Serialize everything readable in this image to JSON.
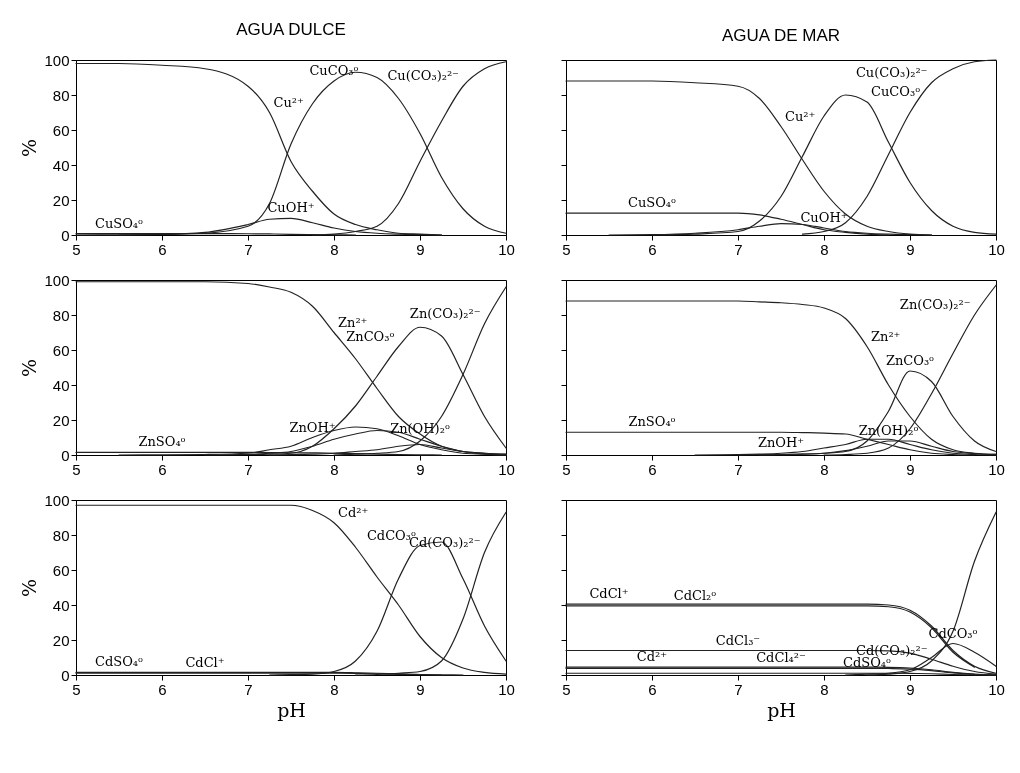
{
  "chart_data": [
    {
      "type": "line",
      "title": "AGUA DULCE",
      "ylabel": "%",
      "xlim": [
        5,
        10
      ],
      "xticks": [
        5,
        6,
        7,
        8,
        9,
        10
      ],
      "ylim": [
        0,
        100
      ],
      "yticks": [
        0,
        20,
        40,
        60,
        80,
        100
      ],
      "grid": false,
      "x": [
        5,
        5.5,
        6,
        6.5,
        7,
        7.25,
        7.5,
        7.75,
        8,
        8.25,
        8.5,
        8.75,
        9,
        9.25,
        9.5,
        9.75,
        10
      ],
      "series": [
        {
          "color": "#222222",
          "values": [
            98,
            98,
            97,
            95,
            85,
            70,
            42,
            25,
            12,
            6,
            3,
            1,
            0.5,
            0,
            null,
            null,
            null
          ]
        },
        {
          "color": "#222222",
          "values": [
            null,
            0,
            0.3,
            1,
            5,
            18,
            52,
            75,
            88,
            93,
            90,
            78,
            58,
            33,
            15,
            5,
            1
          ]
        },
        {
          "color": "#222222",
          "values": [
            null,
            null,
            null,
            null,
            null,
            null,
            null,
            0,
            0.5,
            2,
            5,
            18,
            42,
            65,
            85,
            95,
            99
          ]
        },
        {
          "color": "#222222",
          "values": [
            0,
            0.1,
            0.3,
            1.5,
            6,
            9,
            9.5,
            7,
            4,
            2,
            1,
            0.5,
            0.2,
            0,
            null,
            null,
            null
          ]
        },
        {
          "color": "#222222",
          "values": [
            0.8,
            0.8,
            0.8,
            0.8,
            0.7,
            0.6,
            0.4,
            0.2,
            0.1,
            0,
            null,
            null,
            null,
            null,
            null,
            null,
            null
          ]
        }
      ],
      "annotations": [
        {
          "text": "Cu²⁺",
          "x": 7.25,
          "y": 70
        },
        {
          "text": "CuCO₃ᵒ",
          "x": 8,
          "y": 88
        },
        {
          "text": "Cu(CO₃)₂²⁻",
          "x": 9.5,
          "y": 85
        },
        {
          "text": "CuOH⁺",
          "x": 7.5,
          "y": 9.5
        },
        {
          "text": "CuSO₄ᵒ",
          "x": 5.5,
          "y": 0.8
        }
      ]
    },
    {
      "type": "line",
      "title": "AGUA DE MAR",
      "xlim": [
        5,
        10
      ],
      "xticks": [
        5,
        6,
        7,
        8,
        9,
        10
      ],
      "ylim": [
        0,
        100
      ],
      "yticks": [
        0,
        20,
        40,
        60,
        80,
        100
      ],
      "tick_labels": "x",
      "grid": false,
      "x": [
        5,
        5.5,
        6,
        6.5,
        7,
        7.25,
        7.5,
        7.75,
        8,
        8.25,
        8.5,
        8.75,
        9,
        9.25,
        9.5,
        9.75,
        10
      ],
      "series": [
        {
          "color": "#222222",
          "values": [
            88,
            88,
            88,
            87,
            85,
            78,
            62,
            43,
            25,
            12,
            5,
            2,
            0.5,
            0,
            null,
            null,
            null
          ]
        },
        {
          "color": "#222222",
          "values": [
            null,
            null,
            0,
            0.5,
            2,
            8,
            22,
            45,
            68,
            80,
            76,
            53,
            30,
            14,
            5,
            1.5,
            0.5
          ]
        },
        {
          "color": "#222222",
          "values": [
            null,
            null,
            null,
            null,
            null,
            null,
            null,
            0.5,
            2,
            7,
            22,
            46,
            70,
            87,
            95,
            99,
            100
          ]
        },
        {
          "color": "#222222",
          "values": [
            12.5,
            12.5,
            12.5,
            12.5,
            12.5,
            11.5,
            9,
            6,
            3,
            1.5,
            0.5,
            0,
            null,
            null,
            null,
            null,
            null
          ]
        },
        {
          "color": "#222222",
          "values": [
            null,
            0,
            0.2,
            1,
            3,
            5,
            6.5,
            6,
            4,
            2,
            1,
            0.5,
            0.2,
            0,
            null,
            null,
            null
          ]
        }
      ],
      "annotations": [
        {
          "text": "Cu²⁺",
          "x": 7.5,
          "y": 62
        },
        {
          "text": "CuCO₃ᵒ",
          "x": 8.5,
          "y": 76
        },
        {
          "text": "Cu(CO₃)₂²⁻",
          "x": 9.25,
          "y": 87
        },
        {
          "text": "CuOH⁺",
          "x": 8,
          "y": 4
        },
        {
          "text": "CuSO₄ᵒ",
          "x": 6,
          "y": 12.5
        }
      ]
    },
    {
      "type": "line",
      "ylabel": "%",
      "xlim": [
        5,
        10
      ],
      "xticks": [
        5,
        6,
        7,
        8,
        9,
        10
      ],
      "ylim": [
        0,
        100
      ],
      "yticks": [
        0,
        20,
        40,
        60,
        80,
        100
      ],
      "grid": false,
      "x": [
        5,
        5.5,
        6,
        6.5,
        7,
        7.25,
        7.5,
        7.75,
        8,
        8.25,
        8.5,
        8.75,
        9,
        9.25,
        9.5,
        9.75,
        10
      ],
      "series": [
        {
          "color": "#222222",
          "values": [
            99,
            99,
            99,
            99,
            98,
            96,
            93,
            85,
            70,
            55,
            38,
            22,
            12,
            5,
            2,
            0.5,
            0
          ]
        },
        {
          "color": "#222222",
          "values": [
            null,
            null,
            null,
            0,
            0.3,
            0.5,
            1,
            5,
            15,
            28,
            45,
            62,
            73,
            68,
            46,
            22,
            4
          ]
        },
        {
          "color": "#222222",
          "values": [
            null,
            null,
            null,
            null,
            null,
            null,
            null,
            null,
            0,
            0.5,
            1,
            2,
            8,
            22,
            46,
            75,
            96
          ]
        },
        {
          "color": "#222222",
          "values": [
            null,
            0,
            0.1,
            0.3,
            1,
            3,
            5,
            10,
            14,
            16,
            15,
            11,
            6,
            3,
            1,
            0.5,
            0
          ]
        },
        {
          "color": "#222222",
          "values": [
            null,
            null,
            null,
            null,
            0.2,
            1,
            2,
            5,
            9,
            12,
            14,
            13,
            9,
            5,
            2,
            1,
            0.3
          ]
        },
        {
          "color": "#222222",
          "values": [
            null,
            null,
            null,
            null,
            null,
            0,
            0.2,
            0.5,
            1,
            2,
            3,
            5,
            6,
            4,
            2,
            1,
            0.5
          ]
        },
        {
          "color": "#222222",
          "values": [
            1.5,
            1.5,
            1.5,
            1.5,
            1.5,
            1.4,
            1.3,
            1.2,
            1,
            0.8,
            0.5,
            0.3,
            0.1,
            0,
            null,
            null,
            null
          ]
        }
      ],
      "annotations": [
        {
          "text": "Zn²⁺",
          "x": 8,
          "y": 70
        },
        {
          "text": "ZnCO₃ᵒ",
          "x": 8.75,
          "y": 62
        },
        {
          "text": "Zn(CO₃)₂²⁻",
          "x": 9.75,
          "y": 75
        },
        {
          "text": "Zn(OH)₂ᵒ",
          "x": 9,
          "y": 9
        },
        {
          "text": "ZnOH⁺",
          "x": 7.75,
          "y": 10
        },
        {
          "text": "ZnSO₄ᵒ",
          "x": 6,
          "y": 1.5
        }
      ]
    },
    {
      "type": "line",
      "xlim": [
        5,
        10
      ],
      "xticks": [
        5,
        6,
        7,
        8,
        9,
        10
      ],
      "ylim": [
        0,
        100
      ],
      "yticks": [
        0,
        20,
        40,
        60,
        80,
        100
      ],
      "tick_labels": "x",
      "grid": false,
      "x": [
        5,
        5.5,
        6,
        6.5,
        7,
        7.25,
        7.5,
        7.75,
        8,
        8.25,
        8.5,
        8.75,
        9,
        9.25,
        9.5,
        9.75,
        10
      ],
      "series": [
        {
          "color": "#222222",
          "values": [
            88,
            88,
            88,
            88,
            88,
            87.5,
            87,
            86,
            84,
            78,
            62,
            40,
            22,
            9,
            3,
            1,
            0.3
          ]
        },
        {
          "color": "#222222",
          "values": [
            null,
            null,
            null,
            null,
            null,
            0,
            0.2,
            0.5,
            1,
            2,
            8,
            25,
            48,
            42,
            22,
            8,
            2
          ]
        },
        {
          "color": "#222222",
          "values": [
            null,
            null,
            null,
            null,
            null,
            null,
            null,
            null,
            0,
            0.3,
            1,
            4,
            15,
            35,
            58,
            80,
            97
          ]
        },
        {
          "color": "#222222",
          "values": [
            13,
            13,
            13,
            13,
            13,
            13,
            13,
            12.8,
            12.5,
            12,
            9,
            6,
            3,
            1,
            0.3,
            0,
            null
          ]
        },
        {
          "color": "#222222",
          "values": [
            null,
            null,
            null,
            0,
            0.2,
            0.5,
            1,
            2,
            4,
            6,
            9,
            9,
            6,
            3,
            1,
            0.3,
            0
          ]
        },
        {
          "color": "#222222",
          "values": [
            null,
            null,
            null,
            null,
            0,
            0.2,
            0.3,
            0.5,
            1,
            2.5,
            5,
            8,
            8,
            5,
            2,
            0.8,
            0.3
          ]
        }
      ],
      "annotations": [
        {
          "text": "Zn²⁺",
          "x": 8.5,
          "y": 62
        },
        {
          "text": "ZnCO₃ᵒ",
          "x": 9,
          "y": 48
        },
        {
          "text": "Zn(CO₃)₂²⁻",
          "x": 9.75,
          "y": 80
        },
        {
          "text": "Zn(OH)₂ᵒ",
          "x": 8.75,
          "y": 8
        },
        {
          "text": "ZnOH⁺",
          "x": 7.5,
          "y": 1
        },
        {
          "text": "ZnSO₄ᵒ",
          "x": 6,
          "y": 13
        }
      ]
    },
    {
      "type": "line",
      "xlabel": "pH",
      "ylabel": "%",
      "xlim": [
        5,
        10
      ],
      "xticks": [
        5,
        6,
        7,
        8,
        9,
        10
      ],
      "ylim": [
        0,
        100
      ],
      "yticks": [
        0,
        20,
        40,
        60,
        80,
        100
      ],
      "grid": false,
      "x": [
        5,
        5.5,
        6,
        6.5,
        7,
        7.25,
        7.5,
        7.75,
        8,
        8.25,
        8.5,
        8.75,
        9,
        9.25,
        9.5,
        9.75,
        10
      ],
      "series": [
        {
          "color": "#222222",
          "values": [
            97,
            97,
            97,
            97,
            97,
            97,
            97,
            94,
            87,
            73,
            56,
            40,
            22,
            10,
            4,
            1.5,
            0.5
          ]
        },
        {
          "color": "#222222",
          "values": [
            null,
            null,
            null,
            null,
            null,
            0,
            0.2,
            0.5,
            2,
            8,
            25,
            55,
            74,
            76,
            55,
            28,
            8
          ]
        },
        {
          "color": "#222222",
          "values": [
            null,
            null,
            null,
            null,
            null,
            null,
            null,
            null,
            null,
            0,
            0.3,
            1,
            2,
            8,
            32,
            70,
            93
          ]
        },
        {
          "color": "#222222",
          "values": [
            1.5,
            1.5,
            1.5,
            1.5,
            1.5,
            1.5,
            1.5,
            1.5,
            1.5,
            1.3,
            1,
            0.6,
            0.3,
            0.1,
            0,
            null,
            null
          ]
        },
        {
          "color": "#222222",
          "values": [
            1,
            1,
            1,
            1,
            1,
            1,
            1,
            1,
            1,
            0.9,
            0.7,
            0.4,
            0.2,
            0,
            null,
            null,
            null
          ]
        }
      ],
      "annotations": [
        {
          "text": "Cd²⁺",
          "x": 8,
          "y": 87
        },
        {
          "text": "CdCO₃ᵒ",
          "x": 9,
          "y": 74
        },
        {
          "text": "Cd(CO₃)₂²⁻",
          "x": 9.75,
          "y": 70
        },
        {
          "text": "CdSO₄ᵒ",
          "x": 5.5,
          "y": 1.5
        },
        {
          "text": "CdCl⁺",
          "x": 6.5,
          "y": 1
        }
      ]
    },
    {
      "type": "line",
      "xlabel": "pH",
      "xlim": [
        5,
        10
      ],
      "xticks": [
        5,
        6,
        7,
        8,
        9,
        10
      ],
      "ylim": [
        0,
        100
      ],
      "yticks": [
        0,
        20,
        40,
        60,
        80,
        100
      ],
      "tick_labels": "x",
      "grid": false,
      "x": [
        5,
        5.5,
        6,
        6.5,
        7,
        7.25,
        7.5,
        7.75,
        8,
        8.25,
        8.5,
        8.75,
        9,
        9.25,
        9.5,
        9.75,
        10
      ],
      "series": [
        {
          "color": "#222222",
          "values": [
            40.5,
            40.5,
            40.5,
            40.5,
            40.5,
            40.5,
            40.5,
            40.5,
            40.5,
            40.5,
            40.5,
            40,
            37,
            28,
            14,
            5,
            1
          ]
        },
        {
          "color": "#222222",
          "values": [
            39.5,
            39.5,
            39.5,
            39.5,
            39.5,
            39.5,
            39.5,
            39.5,
            39.5,
            39.5,
            39.5,
            39,
            36,
            27,
            13,
            4.5,
            null
          ]
        },
        {
          "color": "#222222",
          "values": [
            14,
            14,
            14,
            14,
            14,
            14,
            14,
            14,
            14,
            14,
            14,
            13.8,
            12.5,
            9,
            5,
            2,
            0.5
          ]
        },
        {
          "color": "#222222",
          "values": [
            4.5,
            4.5,
            4.5,
            4.5,
            4.5,
            4.5,
            4.5,
            4.5,
            4.5,
            4.5,
            4.5,
            4.4,
            4,
            3,
            1.5,
            0.5,
            0.1
          ]
        },
        {
          "color": "#222222",
          "values": [
            3.8,
            3.8,
            3.8,
            3.8,
            3.8,
            3.8,
            3.8,
            3.8,
            3.8,
            3.8,
            3.8,
            3.7,
            3.4,
            2.5,
            1.2,
            0.4,
            null
          ]
        },
        {
          "color": "#222222",
          "values": [
            1,
            1,
            1,
            1,
            1,
            1,
            1,
            1,
            1,
            1,
            1,
            1,
            0.9,
            0.7,
            0.3,
            0.1,
            0
          ]
        },
        {
          "color": "#222222",
          "values": [
            null,
            null,
            null,
            null,
            null,
            null,
            null,
            null,
            null,
            0,
            0.5,
            1,
            3,
            10,
            18,
            13,
            5
          ]
        },
        {
          "color": "#222222",
          "values": [
            null,
            null,
            null,
            null,
            null,
            null,
            null,
            null,
            null,
            null,
            0,
            0.5,
            2,
            8,
            25,
            65,
            93
          ]
        }
      ],
      "annotations": [
        {
          "text": "CdCl⁺",
          "x": 5.5,
          "y": 40.5
        },
        {
          "text": "CdCl₂ᵒ",
          "x": 6.5,
          "y": 39.5
        },
        {
          "text": "CdCl₃⁻",
          "x": 7,
          "y": 14
        },
        {
          "text": "Cd²⁺",
          "x": 6,
          "y": 4.5
        },
        {
          "text": "CdCl₄²⁻",
          "x": 7.5,
          "y": 3.8
        },
        {
          "text": "CdSO₄ᵒ",
          "x": 8.5,
          "y": 1
        },
        {
          "text": "CdCO₃ᵒ",
          "x": 9.5,
          "y": 18
        },
        {
          "text": "Cd(CO₃)₂²⁻",
          "x": 9.25,
          "y": 8
        }
      ]
    }
  ]
}
